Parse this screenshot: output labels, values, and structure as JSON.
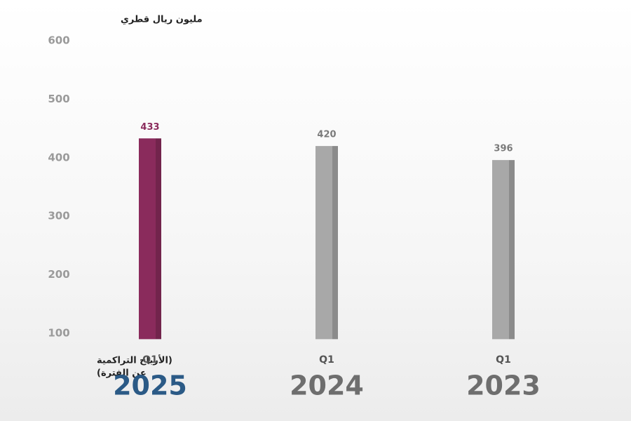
{
  "chart_data": {
    "type": "bar",
    "y_axis_label": "مليون ريال قطري",
    "x_axis_label": [
      "(الأرباح التراكمية",
      "عن الفترة)"
    ],
    "categories": [
      "Q1",
      "Q1",
      "Q1"
    ],
    "years": [
      "2025",
      "2024",
      "2023"
    ],
    "year_colors": [
      "#2b5a86",
      "#6e6e6e",
      "#6e6e6e"
    ],
    "values": [
      433,
      420,
      396
    ],
    "colors": [
      "#8a2b5c",
      "#a8a8a8",
      "#a8a8a8"
    ],
    "label_colors": [
      "#8a2b5c",
      "#7a7a7a",
      "#7a7a7a"
    ],
    "ylim": [
      90,
      600
    ],
    "yticks": [
      100,
      200,
      300,
      400,
      500,
      600
    ],
    "grid": false
  }
}
